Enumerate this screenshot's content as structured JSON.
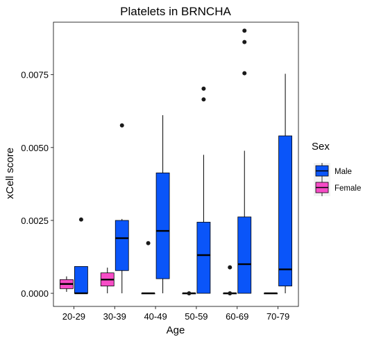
{
  "chart_data": {
    "type": "box",
    "title": "Platelets in BRNCHA",
    "xlabel": "Age",
    "ylabel": "xCell score",
    "categories": [
      "20-29",
      "30-39",
      "40-49",
      "50-59",
      "60-69",
      "70-79"
    ],
    "y_ticks": [
      0,
      0.0025,
      0.005,
      0.0075
    ],
    "y_tick_labels": [
      "0.0000",
      "0.0025",
      "0.0050",
      "0.0075"
    ],
    "ylim": [
      -0.00045,
      0.0093
    ],
    "grid": false,
    "legend": {
      "title": "Sex",
      "position": "right",
      "entries": [
        {
          "label": "Male",
          "color": "#0a55f9"
        },
        {
          "label": "Female",
          "color": "#f64cc6"
        }
      ]
    },
    "series": [
      {
        "name": "Female",
        "color": "#f64cc6",
        "boxes": [
          {
            "category": "20-29",
            "min": 5e-05,
            "q1": 0.00016,
            "median": 0.00032,
            "q3": 0.00047,
            "max": 0.00058,
            "outliers": []
          },
          {
            "category": "30-39",
            "min": 0.0,
            "q1": 0.00025,
            "median": 0.00047,
            "q3": 0.0007,
            "max": 0.00088,
            "outliers": []
          },
          {
            "category": "40-49",
            "min": 0.0,
            "q1": 0.0,
            "median": 0.0,
            "q3": 0.0,
            "max": 0.0,
            "outliers": [
              0.00172
            ]
          },
          {
            "category": "50-59",
            "min": 0.0,
            "q1": 0.0,
            "median": 0.0,
            "q3": 0.0,
            "max": 0.0,
            "outliers": [
              0.0
            ]
          },
          {
            "category": "60-69",
            "min": 0.0,
            "q1": 0.0,
            "median": 0.0,
            "q3": 0.0,
            "max": 0.0,
            "outliers": [
              0.00089,
              0.0
            ]
          },
          {
            "category": "70-79",
            "min": 0.0,
            "q1": 0.0,
            "median": 0.0,
            "q3": 0.0,
            "max": 0.0,
            "outliers": []
          }
        ]
      },
      {
        "name": "Male",
        "color": "#0a55f9",
        "boxes": [
          {
            "category": "20-29",
            "min": 0.0,
            "q1": 0.0,
            "median": 0.0,
            "q3": 0.00092,
            "max": 0.00092,
            "outliers": [
              0.00253
            ]
          },
          {
            "category": "30-39",
            "min": 0.0,
            "q1": 0.00078,
            "median": 0.00189,
            "q3": 0.0025,
            "max": 0.00255,
            "outliers": [
              0.00576
            ]
          },
          {
            "category": "40-49",
            "min": 0.0,
            "q1": 0.0005,
            "median": 0.00214,
            "q3": 0.00413,
            "max": 0.00611,
            "outliers": []
          },
          {
            "category": "50-59",
            "min": 0.0,
            "q1": 0.0,
            "median": 0.00131,
            "q3": 0.00244,
            "max": 0.00475,
            "outliers": [
              0.00702,
              0.00665
            ]
          },
          {
            "category": "60-69",
            "min": 0.0,
            "q1": 0.0,
            "median": 0.001,
            "q3": 0.00262,
            "max": 0.00489,
            "outliers": [
              0.00901,
              0.00862,
              0.00755
            ]
          },
          {
            "category": "70-79",
            "min": 0.0,
            "q1": 0.00025,
            "median": 0.00082,
            "q3": 0.0054,
            "max": 0.00753,
            "outliers": []
          }
        ]
      }
    ]
  }
}
